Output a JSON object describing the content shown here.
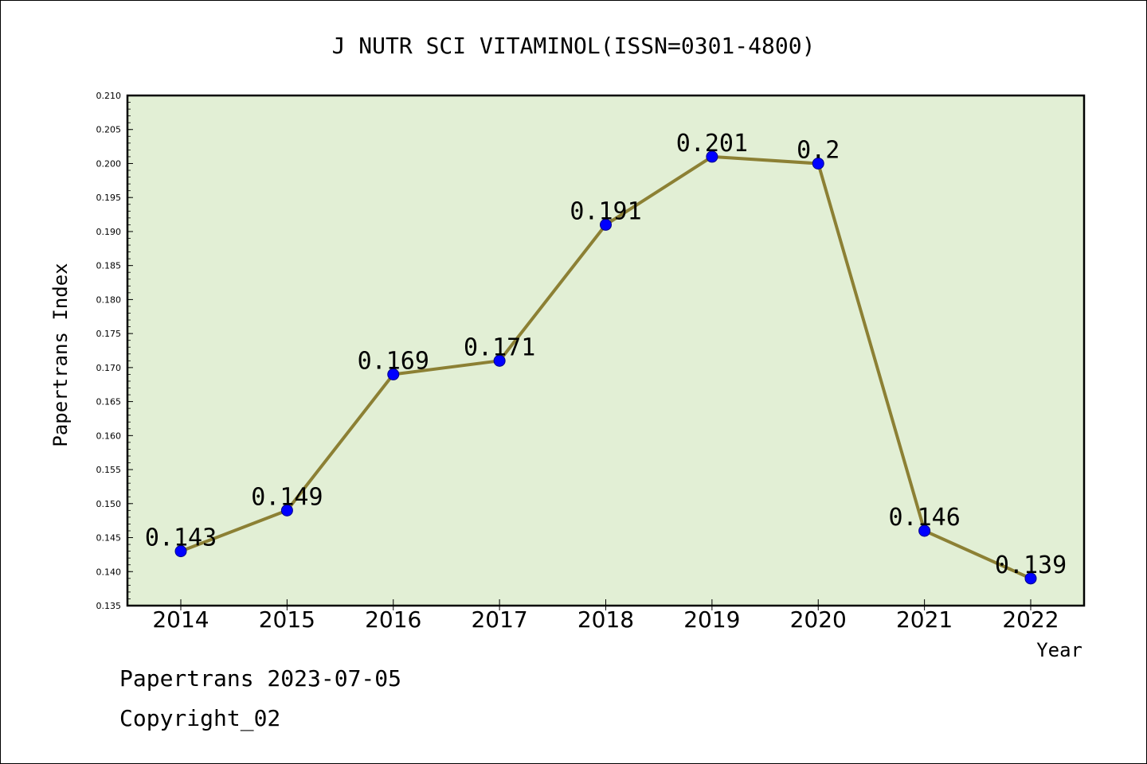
{
  "chart_data": {
    "type": "line",
    "title": "J NUTR SCI VITAMINOL(ISSN=0301-4800)",
    "xlabel": "Year",
    "ylabel": "Papertrans Index",
    "categories": [
      "2014",
      "2015",
      "2016",
      "2017",
      "2018",
      "2019",
      "2020",
      "2021",
      "2022"
    ],
    "values": [
      0.143,
      0.149,
      0.169,
      0.171,
      0.191,
      0.201,
      0.2,
      0.146,
      0.139
    ],
    "data_labels": [
      "0.143",
      "0.149",
      "0.169",
      "0.171",
      "0.191",
      "0.201",
      "0.2",
      "0.146",
      "0.139"
    ],
    "ylim": [
      0.135,
      0.21
    ],
    "yticks": [
      "0.135",
      "0.140",
      "0.145",
      "0.150",
      "0.155",
      "0.160",
      "0.165",
      "0.170",
      "0.175",
      "0.180",
      "0.185",
      "0.190",
      "0.195",
      "0.200",
      "0.205",
      "0.210"
    ],
    "grid": false,
    "colors": {
      "plot_background": "#e2efd5",
      "line": "#8c8034",
      "marker": "#0000ff"
    }
  },
  "footer": {
    "date_text": "Papertrans 2023-07-05",
    "copyright_text": "Copyright_02"
  }
}
